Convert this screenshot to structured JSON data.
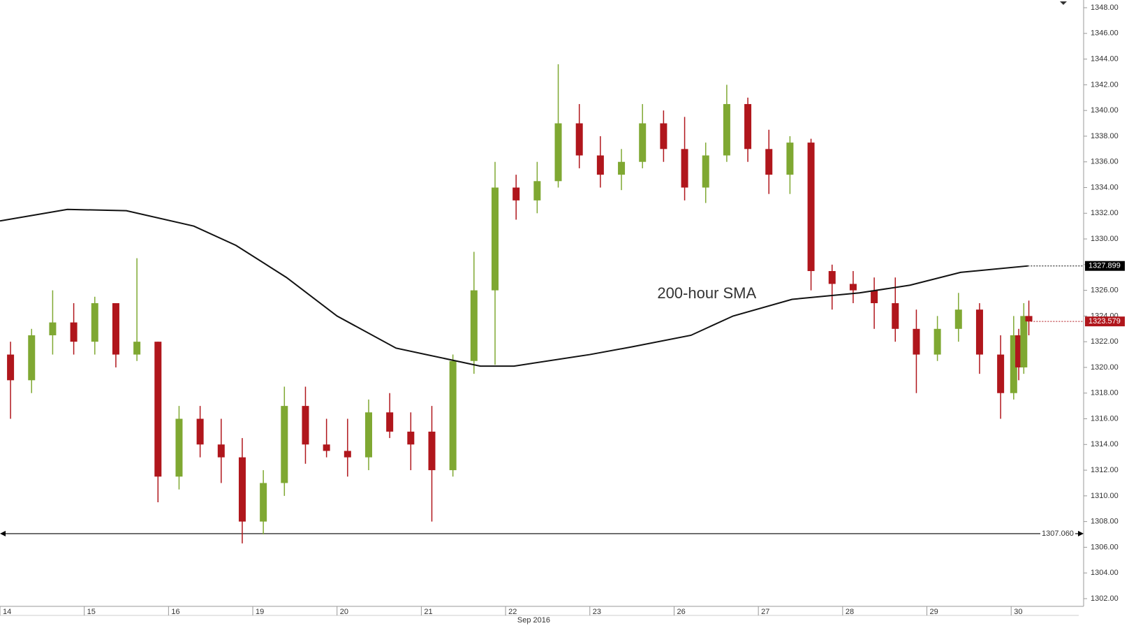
{
  "chart_data": {
    "type": "candlestick",
    "month_label": "Sep 2016",
    "annotation": {
      "text": "200-hour SMA",
      "x": 7.8,
      "y": 1325.7
    },
    "xlim": [
      0,
      12.86
    ],
    "xticks": [
      {
        "value": 0,
        "label": "14"
      },
      {
        "value": 1,
        "label": "15"
      },
      {
        "value": 2,
        "label": "16"
      },
      {
        "value": 3,
        "label": "19"
      },
      {
        "value": 4,
        "label": "20"
      },
      {
        "value": 5,
        "label": "21"
      },
      {
        "value": 6,
        "label": "22"
      },
      {
        "value": 7,
        "label": "23"
      },
      {
        "value": 8,
        "label": "26"
      },
      {
        "value": 9,
        "label": "27"
      },
      {
        "value": 10,
        "label": "28"
      },
      {
        "value": 11,
        "label": "29"
      },
      {
        "value": 12,
        "label": "30"
      }
    ],
    "ylim": [
      1301.4,
      1348.6
    ],
    "yticks": [
      {
        "value": 1302,
        "label": "1302.00"
      },
      {
        "value": 1304,
        "label": "1304.00"
      },
      {
        "value": 1306,
        "label": "1306.00"
      },
      {
        "value": 1308,
        "label": "1308.00"
      },
      {
        "value": 1310,
        "label": "1310.00"
      },
      {
        "value": 1312,
        "label": "1312.00"
      },
      {
        "value": 1314,
        "label": "1314.00"
      },
      {
        "value": 1316,
        "label": "1316.00"
      },
      {
        "value": 1318,
        "label": "1318.00"
      },
      {
        "value": 1320,
        "label": "1320.00"
      },
      {
        "value": 1322,
        "label": "1322.00"
      },
      {
        "value": 1324,
        "label": "1324.00"
      },
      {
        "value": 1326,
        "label": "1326.00"
      },
      {
        "value": 1328,
        "label": "1328.00"
      },
      {
        "value": 1330,
        "label": "1330.00"
      },
      {
        "value": 1332,
        "label": "1332.00"
      },
      {
        "value": 1334,
        "label": "1334.00"
      },
      {
        "value": 1336,
        "label": "1336.00"
      },
      {
        "value": 1338,
        "label": "1338.00"
      },
      {
        "value": 1340,
        "label": "1340.00"
      },
      {
        "value": 1342,
        "label": "1342.00"
      },
      {
        "value": 1344,
        "label": "1344.00"
      },
      {
        "value": 1346,
        "label": "1346.00"
      },
      {
        "value": 1348,
        "label": "1348.00"
      }
    ],
    "up_color": "#7fa832",
    "down_color": "#b0161c",
    "candles": {
      "x": [
        0.125,
        0.375,
        0.625,
        0.875,
        1.125,
        1.375,
        1.625,
        1.875,
        2.125,
        2.375,
        2.625,
        2.875,
        3.125,
        3.375,
        3.625,
        3.875,
        4.125,
        4.375,
        4.625,
        4.875,
        5.125,
        5.375,
        5.625,
        5.875,
        6.125,
        6.375,
        6.625,
        6.875,
        7.125,
        7.375,
        7.625,
        7.875,
        8.125,
        8.375,
        8.625,
        8.875,
        9.125,
        9.375,
        9.625,
        9.875,
        10.125,
        10.375,
        10.625,
        10.875,
        11.125,
        11.375,
        11.625,
        11.875,
        12.03,
        12.09,
        12.15,
        12.21
      ],
      "open": [
        1321,
        1319,
        1322.5,
        1323.5,
        1322,
        1325,
        1321,
        1322,
        1311.5,
        1316,
        1314,
        1313,
        1308,
        1311,
        1317,
        1314,
        1313.5,
        1313,
        1316.5,
        1315,
        1315,
        1312,
        1320.5,
        1326,
        1334,
        1333,
        1334.5,
        1339,
        1336.5,
        1335,
        1336,
        1339,
        1337,
        1334,
        1336.5,
        1340.5,
        1337,
        1335,
        1337.5,
        1327.5,
        1326.5,
        1326,
        1325,
        1323,
        1321,
        1323,
        1324.5,
        1321,
        1318,
        1322.5,
        1320,
        1324
      ],
      "high": [
        1322,
        1323,
        1326,
        1325,
        1325.5,
        1325,
        1328.5,
        1322,
        1317,
        1317,
        1316,
        1314.5,
        1312,
        1318.5,
        1318.5,
        1316,
        1316,
        1317.5,
        1318,
        1316.5,
        1317,
        1321,
        1329,
        1336,
        1335,
        1336,
        1343.6,
        1340.5,
        1338,
        1337,
        1340.5,
        1340,
        1339.5,
        1337.5,
        1342,
        1341,
        1338.5,
        1338,
        1337.8,
        1328,
        1327.5,
        1327,
        1327,
        1324.5,
        1324,
        1325.8,
        1325,
        1322.5,
        1324,
        1323,
        1325,
        1325.2
      ],
      "low": [
        1316,
        1318,
        1321,
        1321,
        1321,
        1320,
        1320.5,
        1309.5,
        1310.5,
        1313,
        1311,
        1306.3,
        1307,
        1310,
        1312.5,
        1313,
        1311.5,
        1312,
        1314.5,
        1312,
        1308,
        1311.5,
        1319.5,
        1320.2,
        1331.5,
        1332,
        1334,
        1335.5,
        1334,
        1333.8,
        1335.5,
        1336,
        1333,
        1332.8,
        1336,
        1336,
        1333.5,
        1333.5,
        1326,
        1324.5,
        1325,
        1323,
        1322,
        1318,
        1320.5,
        1322,
        1319.5,
        1316,
        1317.5,
        1319,
        1319.5,
        1322.5
      ],
      "close": [
        1319,
        1322.5,
        1323.5,
        1322,
        1325,
        1321,
        1322,
        1311.5,
        1316,
        1314,
        1313,
        1308,
        1311,
        1317,
        1314,
        1313.5,
        1313,
        1316.5,
        1315,
        1314,
        1312,
        1320.5,
        1326,
        1334,
        1333,
        1334.5,
        1339,
        1336.5,
        1335,
        1336,
        1339,
        1337,
        1334,
        1336.5,
        1340.5,
        1337,
        1335,
        1337.5,
        1327.5,
        1326.5,
        1326,
        1325,
        1323,
        1321,
        1323,
        1324.5,
        1321,
        1318,
        1322.5,
        1320,
        1324,
        1323.579
      ]
    },
    "sma": {
      "color": "#111111",
      "x": [
        0,
        0.8,
        1.5,
        2.3,
        2.8,
        3.4,
        4.0,
        4.7,
        5.7,
        6.1,
        7.0,
        7.5,
        8.2,
        8.7,
        9.4,
        10.2,
        10.8,
        11.4,
        12.2
      ],
      "values": [
        1331.4,
        1332.3,
        1332.2,
        1331,
        1329.5,
        1327,
        1324,
        1321.5,
        1320.1,
        1320.1,
        1321,
        1321.6,
        1322.5,
        1324,
        1325.3,
        1325.8,
        1326.4,
        1327.4,
        1327.899
      ]
    },
    "sma_last": 1327.899,
    "last_price": 1323.579,
    "support": {
      "value": 1307.06,
      "label": "1307.060"
    }
  }
}
